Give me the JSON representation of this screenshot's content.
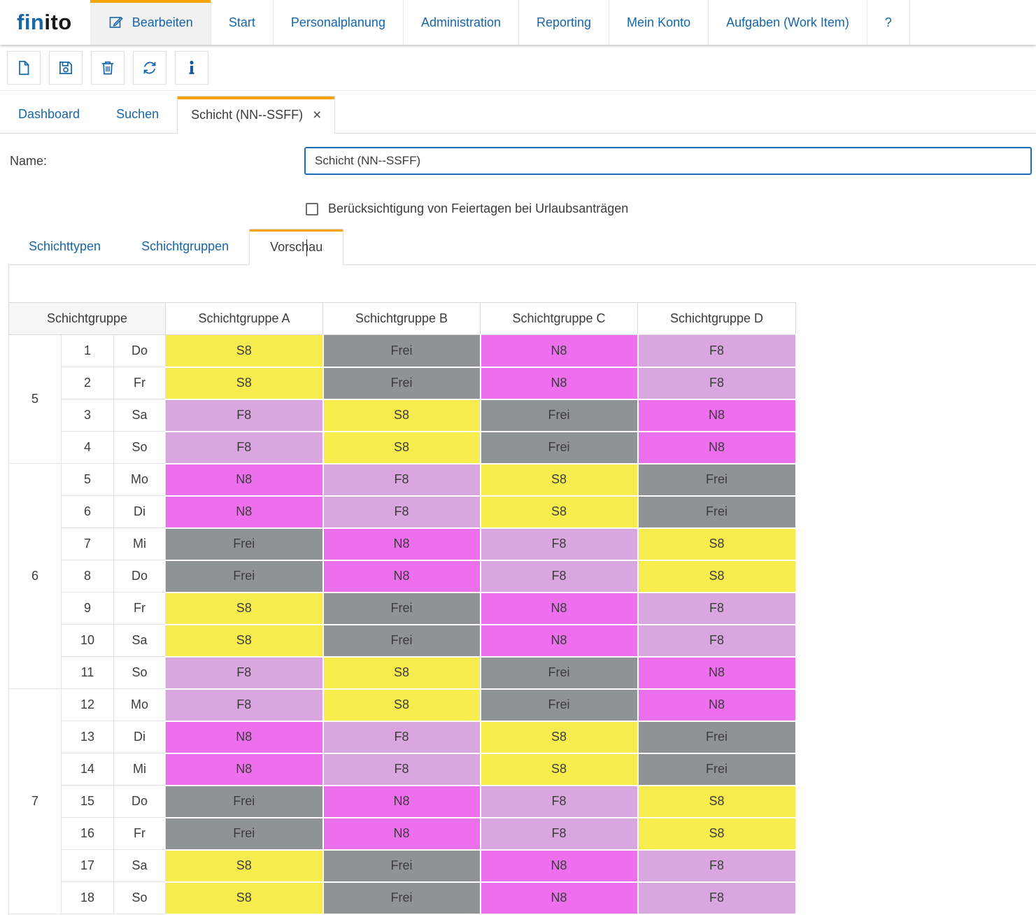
{
  "colors": {
    "accent_orange": "#F9A300",
    "nav_blue": "#1766A9",
    "icon_blue": "#1A67A8",
    "input_border_blue": "#1C6FB8"
  },
  "brand": {
    "logo_part_blue": "fin",
    "logo_part_dark": "ito"
  },
  "navbar": {
    "items": [
      {
        "label": "Bearbeiten",
        "active": true,
        "icon": "edit-icon"
      },
      {
        "label": "Start"
      },
      {
        "label": "Personalplanung"
      },
      {
        "label": "Administration"
      },
      {
        "label": "Reporting"
      },
      {
        "label": "Mein Konto"
      },
      {
        "label": "Aufgaben (Work Item)"
      },
      {
        "label": "?"
      }
    ]
  },
  "toolbar": {
    "buttons": [
      {
        "name": "new-document-button",
        "icon": "new-document-icon"
      },
      {
        "name": "save-button",
        "icon": "save-icon"
      },
      {
        "name": "delete-button",
        "icon": "delete-icon"
      },
      {
        "name": "refresh-button",
        "icon": "refresh-icon"
      },
      {
        "name": "info-button",
        "icon": "info-icon"
      }
    ]
  },
  "doc_tabs": {
    "items": [
      {
        "label": "Dashboard"
      },
      {
        "label": "Suchen"
      },
      {
        "label": "Schicht (NN--SSFF)",
        "active": true,
        "closable": true
      }
    ]
  },
  "form": {
    "name_label": "Name:",
    "name_value": "Schicht (NN--SSFF)",
    "holiday_checkbox_label": "Berücksichtigung von Feiertagen bei Urlaubsanträgen",
    "holiday_checkbox_checked": false
  },
  "sub_tabs": {
    "items": [
      {
        "label": "Schichttypen"
      },
      {
        "label": "Schichtgruppen"
      },
      {
        "label": "Vorschau",
        "active": true
      }
    ]
  },
  "preview_table": {
    "group_header": "Schichtgruppe",
    "columns": [
      "Schichtgruppe A",
      "Schichtgruppe B",
      "Schichtgruppe C",
      "Schichtgruppe D"
    ],
    "shift_colors": {
      "S8": "#F7EC4E",
      "Frei": "#8E9496",
      "N8": "#EE6FEE",
      "F8": "#D9A6DF"
    },
    "weeks": [
      {
        "week": "5",
        "days": [
          {
            "num": "1",
            "name": "Do",
            "shifts": [
              "S8",
              "Frei",
              "N8",
              "F8"
            ]
          },
          {
            "num": "2",
            "name": "Fr",
            "shifts": [
              "S8",
              "Frei",
              "N8",
              "F8"
            ]
          },
          {
            "num": "3",
            "name": "Sa",
            "shifts": [
              "F8",
              "S8",
              "Frei",
              "N8"
            ]
          },
          {
            "num": "4",
            "name": "So",
            "shifts": [
              "F8",
              "S8",
              "Frei",
              "N8"
            ]
          }
        ]
      },
      {
        "week": "6",
        "days": [
          {
            "num": "5",
            "name": "Mo",
            "shifts": [
              "N8",
              "F8",
              "S8",
              "Frei"
            ]
          },
          {
            "num": "6",
            "name": "Di",
            "shifts": [
              "N8",
              "F8",
              "S8",
              "Frei"
            ]
          },
          {
            "num": "7",
            "name": "Mi",
            "shifts": [
              "Frei",
              "N8",
              "F8",
              "S8"
            ]
          },
          {
            "num": "8",
            "name": "Do",
            "shifts": [
              "Frei",
              "N8",
              "F8",
              "S8"
            ]
          },
          {
            "num": "9",
            "name": "Fr",
            "shifts": [
              "S8",
              "Frei",
              "N8",
              "F8"
            ]
          },
          {
            "num": "10",
            "name": "Sa",
            "shifts": [
              "S8",
              "Frei",
              "N8",
              "F8"
            ]
          },
          {
            "num": "11",
            "name": "So",
            "shifts": [
              "F8",
              "S8",
              "Frei",
              "N8"
            ]
          }
        ]
      },
      {
        "week": "7",
        "days": [
          {
            "num": "12",
            "name": "Mo",
            "shifts": [
              "F8",
              "S8",
              "Frei",
              "N8"
            ]
          },
          {
            "num": "13",
            "name": "Di",
            "shifts": [
              "N8",
              "F8",
              "S8",
              "Frei"
            ]
          },
          {
            "num": "14",
            "name": "Mi",
            "shifts": [
              "N8",
              "F8",
              "S8",
              "Frei"
            ]
          },
          {
            "num": "15",
            "name": "Do",
            "shifts": [
              "Frei",
              "N8",
              "F8",
              "S8"
            ]
          },
          {
            "num": "16",
            "name": "Fr",
            "shifts": [
              "Frei",
              "N8",
              "F8",
              "S8"
            ]
          },
          {
            "num": "17",
            "name": "Sa",
            "shifts": [
              "S8",
              "Frei",
              "N8",
              "F8"
            ]
          },
          {
            "num": "18",
            "name": "So",
            "shifts": [
              "S8",
              "Frei",
              "N8",
              "F8"
            ]
          }
        ]
      }
    ]
  }
}
